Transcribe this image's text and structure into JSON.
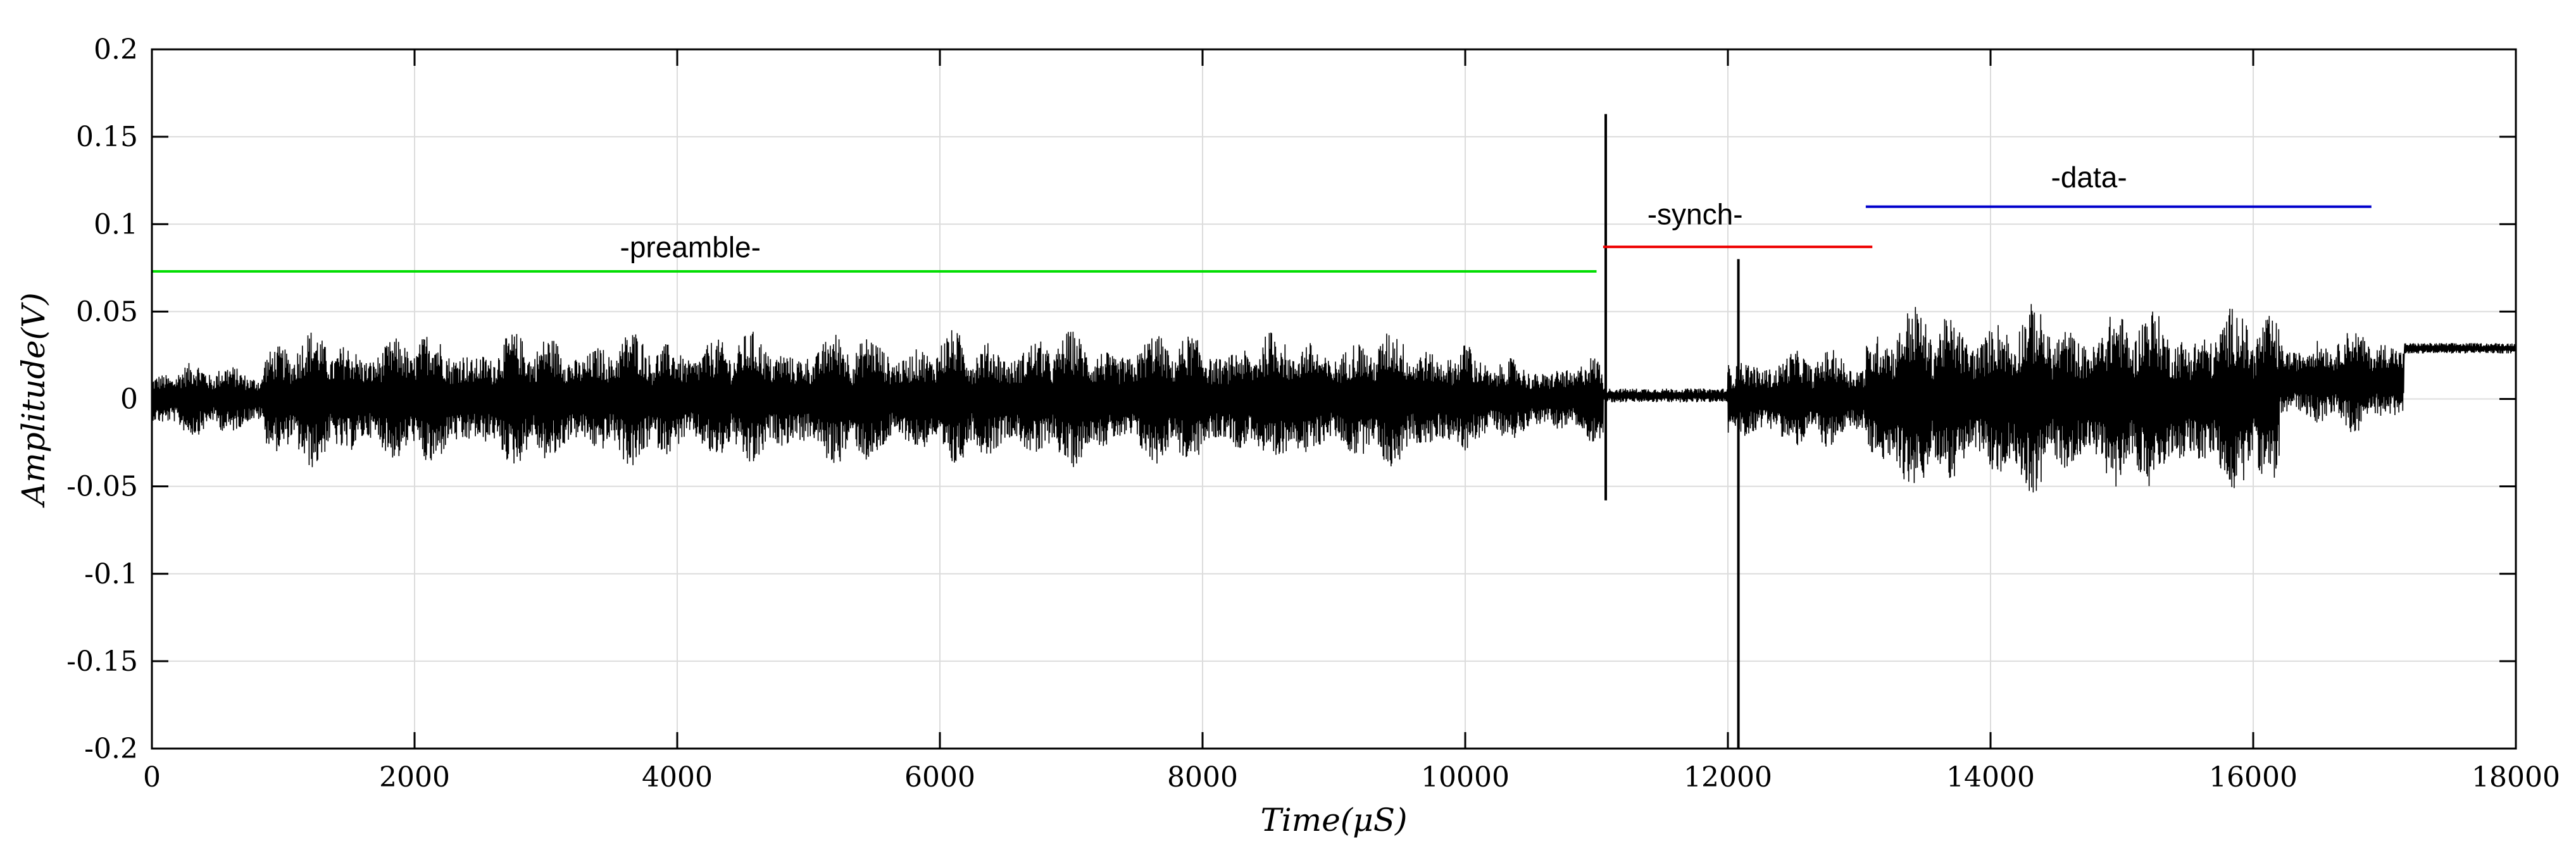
{
  "chart_data": {
    "type": "line",
    "title": "",
    "xlabel": "Time(μS)",
    "ylabel": "Amplitude(V)",
    "xlim": [
      0,
      18000
    ],
    "ylim": [
      -0.2,
      0.2
    ],
    "xticks": [
      0,
      2000,
      4000,
      6000,
      8000,
      10000,
      12000,
      14000,
      16000,
      18000
    ],
    "xtick_labels": [
      "0",
      "2000",
      "4000",
      "6000",
      "8000",
      "10000",
      "12000",
      "14000",
      "16000",
      "18000"
    ],
    "yticks": [
      -0.2,
      -0.15,
      -0.1,
      -0.05,
      0,
      0.05,
      0.1,
      0.15,
      0.2
    ],
    "ytick_labels": [
      "-0.2",
      "-0.15",
      "-0.1",
      "-0.05",
      "0",
      "0.05",
      "0.1",
      "0.15",
      "0.2"
    ],
    "grid": true,
    "signal": {
      "color": "#000000",
      "segments": [
        {
          "start": 0,
          "end": 850,
          "amplitude": 0.022,
          "offset": 0.0
        },
        {
          "start": 850,
          "end": 10050,
          "amplitude": 0.04,
          "offset": 0.0
        },
        {
          "start": 10050,
          "end": 11050,
          "amplitude": 0.025,
          "offset": 0.0
        },
        {
          "start": 11050,
          "end": 12000,
          "amplitude": 0.004,
          "offset": 0.002
        },
        {
          "start": 12000,
          "end": 13050,
          "amplitude": 0.03,
          "offset": 0.0
        },
        {
          "start": 13050,
          "end": 16200,
          "amplitude": 0.055,
          "offset": 0.0
        },
        {
          "start": 16200,
          "end": 17150,
          "amplitude": 0.03,
          "offset": 0.01
        },
        {
          "start": 17150,
          "end": 18000,
          "amplitude": 0.003,
          "offset": 0.029
        }
      ],
      "spikes": [
        {
          "x": 11070,
          "min": -0.058,
          "max": 0.163
        },
        {
          "x": 12080,
          "min": -0.2,
          "max": 0.08
        }
      ]
    },
    "markers": [
      {
        "label": "-preamble-",
        "color": "#00dd00",
        "x_start": 0,
        "x_end": 11000,
        "y": 0.073
      },
      {
        "label": "-synch-",
        "color": "#ee0000",
        "x_start": 11050,
        "x_end": 13100,
        "y": 0.087
      },
      {
        "label": "-data-",
        "color": "#0000cc",
        "x_start": 13050,
        "x_end": 16900,
        "y": 0.11
      }
    ],
    "annotations": [
      {
        "text": "-preamble-",
        "x": 4100,
        "y": 0.081
      },
      {
        "text": "-synch-",
        "x": 11750,
        "y": 0.1
      },
      {
        "text": "-data-",
        "x": 14750,
        "y": 0.121
      }
    ]
  }
}
